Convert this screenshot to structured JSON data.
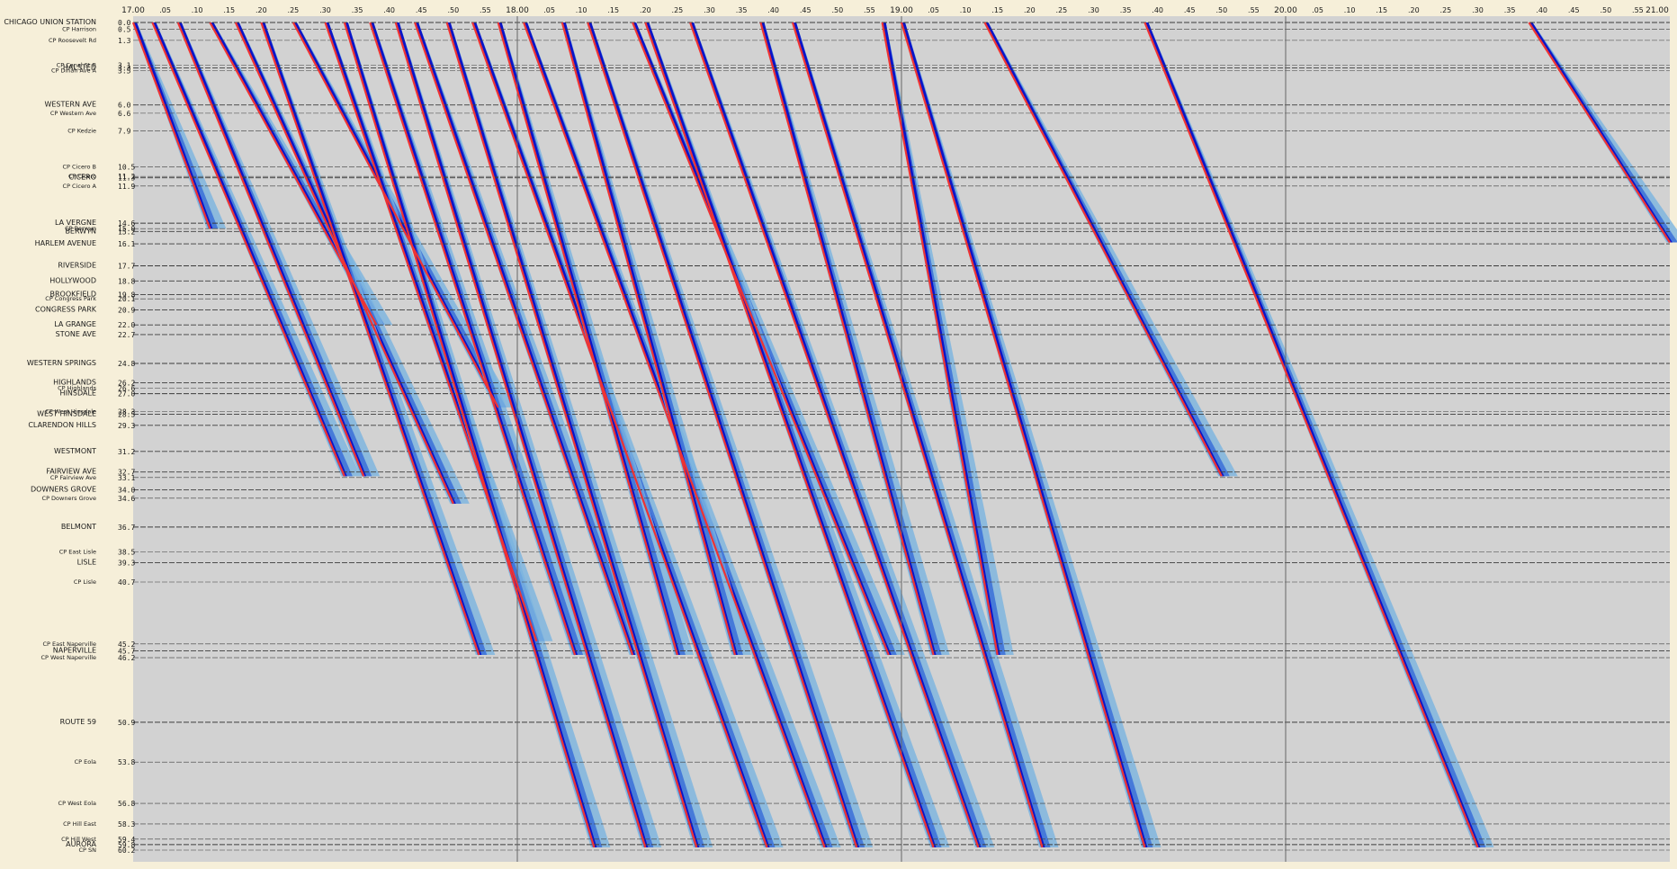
{
  "chart_data": {
    "type": "line",
    "subtype": "time-distance stringline diagram",
    "x_axis": {
      "unit": "clock time (hour.minute)",
      "range": [
        17.0,
        21.0
      ],
      "hour_labels": [
        "17.00",
        "18.00",
        "19.00",
        "20.00",
        "21.00"
      ],
      "minute_labels": [
        ".05",
        ".10",
        ".15",
        ".20",
        ".25",
        ".30",
        ".35",
        ".40",
        ".45",
        ".50",
        ".55"
      ],
      "position": "top"
    },
    "y_axis": {
      "unit": "mile post",
      "range": [
        0.0,
        60.2
      ],
      "direction": "down"
    },
    "stations": [
      {
        "name": "CHICAGO UNION STATION",
        "mile": "0.0",
        "major": true
      },
      {
        "name": "CP Harrison",
        "mile": "0.5",
        "major": false
      },
      {
        "name": "CP Roosevelt Rd",
        "mile": "1.3",
        "major": false
      },
      {
        "name": "CP Canal St B",
        "mile": "3.1",
        "major": false
      },
      {
        "name": "HALSTED",
        "mile": "3.3",
        "major": true
      },
      {
        "name": "CP Dinah Ave A",
        "mile": "3.5",
        "major": false
      },
      {
        "name": "WESTERN AVE",
        "mile": "6.0",
        "major": true
      },
      {
        "name": "CP Western Ave",
        "mile": "6.6",
        "major": false
      },
      {
        "name": "CP Kedzie",
        "mile": "7.9",
        "major": false
      },
      {
        "name": "CP Cicero B",
        "mile": "10.5",
        "major": false
      },
      {
        "name": "CP Cicero",
        "mile": "11.2",
        "major": false
      },
      {
        "name": "CICERO",
        "mile": "11.3",
        "major": true
      },
      {
        "name": "CP Cicero A",
        "mile": "11.9",
        "major": false
      },
      {
        "name": "LA VERGNE",
        "mile": "14.6",
        "major": true
      },
      {
        "name": "CP Berwyn",
        "mile": "15.0",
        "major": false
      },
      {
        "name": "BERWYN",
        "mile": "15.2",
        "major": true
      },
      {
        "name": "HARLEM AVENUE",
        "mile": "16.1",
        "major": true
      },
      {
        "name": "RIVERSIDE",
        "mile": "17.7",
        "major": true
      },
      {
        "name": "HOLLYWOOD",
        "mile": "18.8",
        "major": true
      },
      {
        "name": "BROOKFIELD",
        "mile": "19.8",
        "major": true
      },
      {
        "name": "CP Congress Park",
        "mile": "20.1",
        "major": false
      },
      {
        "name": "CONGRESS PARK",
        "mile": "20.9",
        "major": true
      },
      {
        "name": "LA GRANGE",
        "mile": "22.0",
        "major": true
      },
      {
        "name": "STONE AVE",
        "mile": "22.7",
        "major": true
      },
      {
        "name": "WESTERN SPRINGS",
        "mile": "24.8",
        "major": true
      },
      {
        "name": "HIGHLANDS",
        "mile": "26.2",
        "major": true
      },
      {
        "name": "CP Highlands",
        "mile": "26.6",
        "major": false
      },
      {
        "name": "HINSDALE",
        "mile": "27.0",
        "major": true
      },
      {
        "name": "CP West Hinsdale",
        "mile": "28.3",
        "major": false
      },
      {
        "name": "WEST HINSDALE",
        "mile": "28.5",
        "major": true
      },
      {
        "name": "CLARENDON HILLS",
        "mile": "29.3",
        "major": true
      },
      {
        "name": "WESTMONT",
        "mile": "31.2",
        "major": true
      },
      {
        "name": "FAIRVIEW AVE",
        "mile": "32.7",
        "major": true
      },
      {
        "name": "CP Fairview Ave",
        "mile": "33.1",
        "major": false
      },
      {
        "name": "DOWNERS GROVE",
        "mile": "34.0",
        "major": true
      },
      {
        "name": "CP Downers Grove",
        "mile": "34.6",
        "major": false
      },
      {
        "name": "BELMONT",
        "mile": "36.7",
        "major": true
      },
      {
        "name": "CP East Lisle",
        "mile": "38.5",
        "major": false
      },
      {
        "name": "LISLE",
        "mile": "39.3",
        "major": true
      },
      {
        "name": "CP Lisle",
        "mile": "40.7",
        "major": false
      },
      {
        "name": "CP East Naperville",
        "mile": "45.2",
        "major": false
      },
      {
        "name": "NAPERVILLE",
        "mile": "45.7",
        "major": true
      },
      {
        "name": "CP West Naperville",
        "mile": "46.2",
        "major": false
      },
      {
        "name": "ROUTE 59",
        "mile": "50.9",
        "major": true
      },
      {
        "name": "CP Eola",
        "mile": "53.8",
        "major": false
      },
      {
        "name": "CP West Eola",
        "mile": "56.8",
        "major": false
      },
      {
        "name": "CP Hill East",
        "mile": "58.3",
        "major": false
      },
      {
        "name": "CP Hill West",
        "mile": "59.4",
        "major": false
      },
      {
        "name": "AURORA",
        "mile": "59.8",
        "major": true
      },
      {
        "name": "CP SN",
        "mile": "60.2",
        "major": false
      }
    ],
    "series": [
      {
        "type": "scheduled train path",
        "color": "#ee3333",
        "paths": [
          {
            "time_in_minutes_after_17": [
              0,
              12
            ],
            "mile": [
              0,
              15
            ]
          },
          {
            "time_in_minutes_after_17": [
              3,
              33
            ],
            "mile": [
              0,
              33
            ]
          },
          {
            "time_in_minutes_after_17": [
              7,
              36
            ],
            "mile": [
              0,
              33
            ]
          },
          {
            "time_in_minutes_after_17": [
              12,
              38
            ],
            "mile": [
              0,
              22
            ]
          },
          {
            "time_in_minutes_after_17": [
              16,
              50
            ],
            "mile": [
              0,
              35
            ]
          },
          {
            "time_in_minutes_after_17": [
              20,
              54
            ],
            "mile": [
              0,
              46
            ]
          },
          {
            "time_in_minutes_after_17": [
              25,
              57
            ],
            "mile": [
              0,
              28
            ]
          },
          {
            "time_in_minutes_after_17": [
              30,
              63
            ],
            "mile": [
              0,
              45
            ]
          },
          {
            "time_in_minutes_after_17": [
              33,
              72
            ],
            "mile": [
              0,
              60
            ]
          },
          {
            "time_in_minutes_after_17": [
              37,
              69
            ],
            "mile": [
              0,
              46
            ]
          },
          {
            "time_in_minutes_after_17": [
              41,
              80
            ],
            "mile": [
              0,
              60
            ]
          },
          {
            "time_in_minutes_after_17": [
              44,
              78
            ],
            "mile": [
              0,
              46
            ]
          },
          {
            "time_in_minutes_after_17": [
              49,
              88
            ],
            "mile": [
              0,
              60
            ]
          },
          {
            "time_in_minutes_after_17": [
              53,
              99
            ],
            "mile": [
              0,
              60
            ]
          },
          {
            "time_in_minutes_after_17": [
              57,
              85
            ],
            "mile": [
              0,
              46
            ]
          },
          {
            "time_in_minutes_after_17": [
              61,
              108
            ],
            "mile": [
              0,
              60
            ]
          },
          {
            "time_in_minutes_after_17": [
              67,
              94
            ],
            "mile": [
              0,
              46
            ]
          },
          {
            "time_in_minutes_after_17": [
              71,
              113
            ],
            "mile": [
              0,
              60
            ]
          },
          {
            "time_in_minutes_after_17": [
              78,
              118
            ],
            "mile": [
              0,
              46
            ]
          },
          {
            "time_in_minutes_after_17": [
              80,
              125
            ],
            "mile": [
              0,
              60
            ]
          },
          {
            "time_in_minutes_after_17": [
              87,
              132
            ],
            "mile": [
              0,
              60
            ]
          },
          {
            "time_in_minutes_after_17": [
              98,
              125
            ],
            "mile": [
              0,
              46
            ]
          },
          {
            "time_in_minutes_after_17": [
              103,
              142
            ],
            "mile": [
              0,
              60
            ]
          },
          {
            "time_in_minutes_after_17": [
              117,
              135
            ],
            "mile": [
              0,
              46
            ]
          },
          {
            "time_in_minutes_after_17": [
              120,
              158
            ],
            "mile": [
              0,
              60
            ]
          },
          {
            "time_in_minutes_after_17": [
              133,
              170
            ],
            "mile": [
              0,
              33
            ]
          },
          {
            "time_in_minutes_after_17": [
              158,
              210
            ],
            "mile": [
              0,
              60
            ]
          },
          {
            "time_in_minutes_after_17": [
              218,
              240
            ],
            "mile": [
              0,
              16
            ]
          }
        ]
      },
      {
        "type": "simulated train paths (variability band)",
        "color": "#7ab4e0"
      },
      {
        "type": "simulated train paths (inner band)",
        "color": "#3a6fd8"
      },
      {
        "type": "simulated train paths (median)",
        "color": "#0a14c8"
      }
    ],
    "grid": true
  }
}
